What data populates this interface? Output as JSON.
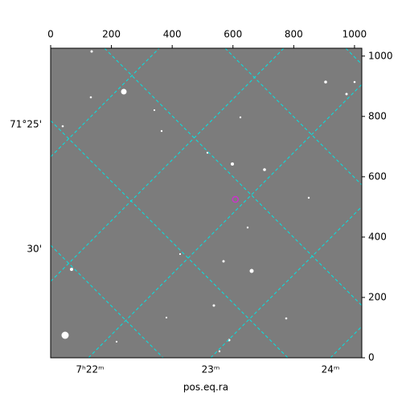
{
  "chart_data": {
    "type": "image",
    "xlabel": "pos.eq.ra",
    "xlim": [
      0,
      1024
    ],
    "ylim": [
      0,
      1026
    ],
    "xticks": [
      0,
      200,
      400,
      600,
      800,
      1000
    ],
    "yticks": [
      0,
      200,
      400,
      600,
      800,
      1000
    ],
    "ra_labels": [
      "7ʰ22ᵐ",
      "23ᵐ",
      "24ᵐ"
    ],
    "dec_labels": [
      "71°25'",
      "30'"
    ],
    "grid_color": "#00e5e5",
    "marker": {
      "x": 608,
      "y": 525,
      "color": "#cc33cc"
    }
  }
}
